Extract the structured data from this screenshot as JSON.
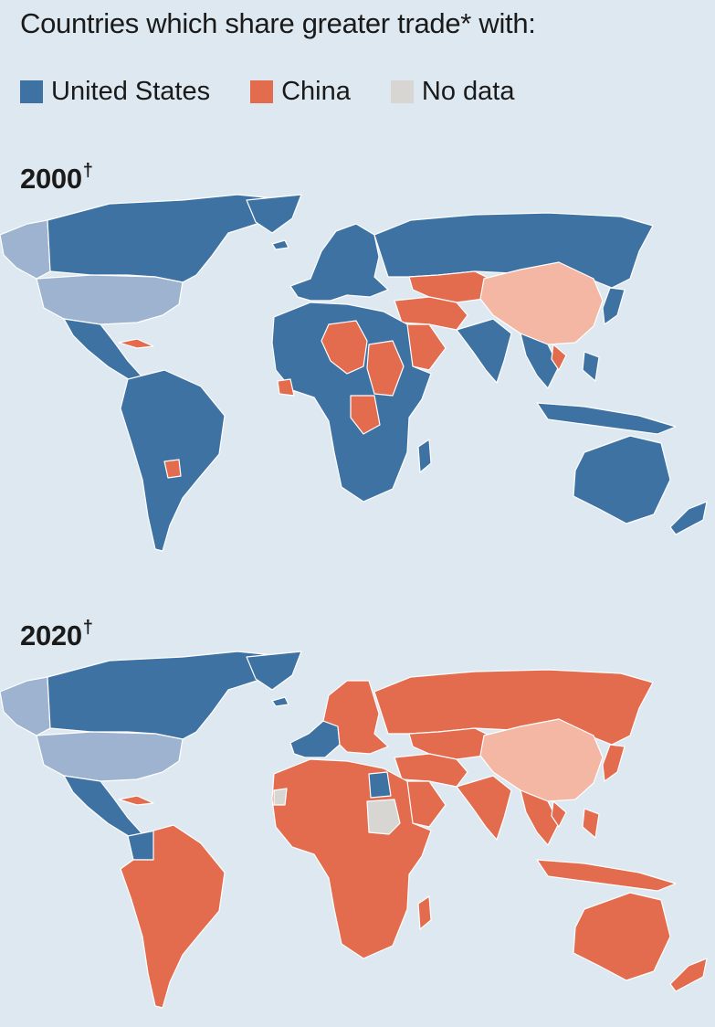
{
  "subtitle": "Countries which share greater trade* with:",
  "legend": [
    {
      "label": "United States",
      "color": "#3e72a3"
    },
    {
      "label": "China",
      "color": "#e36b4e"
    },
    {
      "label": "No data",
      "color": "#d7d6d2"
    }
  ],
  "colors": {
    "us": "#3e72a3",
    "us_self": "#9db3cf",
    "china": "#e36b4e",
    "china_self": "#f3b7a3",
    "nodata": "#d7d6d2",
    "background": "#dde8f0",
    "border": "#ffffff"
  },
  "panels": [
    {
      "year": "2000",
      "mark": "†"
    },
    {
      "year": "2020",
      "mark": "†"
    }
  ]
}
